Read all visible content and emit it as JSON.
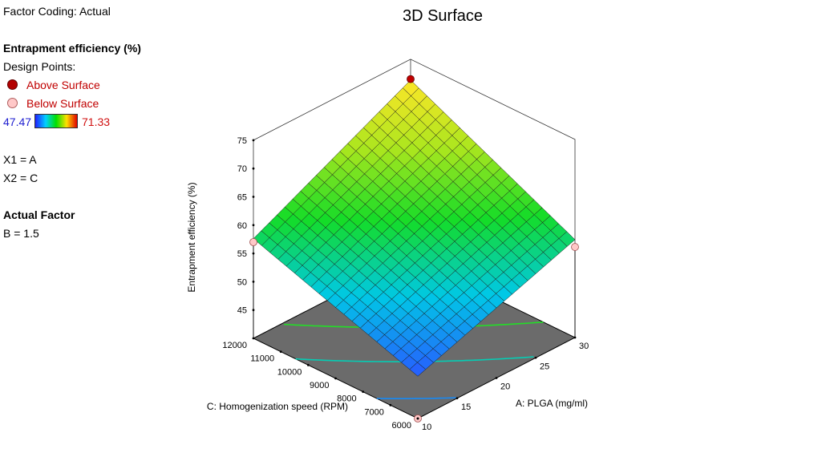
{
  "legend": {
    "factor_coding": "Factor Coding: Actual",
    "response_title": "Entrapment efficiency (%)",
    "design_points_label": "Design Points:",
    "above_label": "Above Surface",
    "below_label": "Below Surface",
    "range_min": "47.47",
    "range_max": "71.33",
    "x1_mapping": "X1 = A",
    "x2_mapping": "X2 = C",
    "actual_factor_title": "Actual Factor",
    "actual_factor_value": "B = 1.5",
    "colors": {
      "above": "#b20000",
      "below": "#ffc8c8",
      "low": "#2020ff",
      "high": "#e00000"
    }
  },
  "chart_data": {
    "type": "surface",
    "title": "3D Surface",
    "xlabel": "A: PLGA (mg/ml)",
    "ylabel": "C: Homogenization speed (RPM)",
    "zlabel": "Entrapment efficiency (%)",
    "xlim": [
      10,
      30
    ],
    "ylim": [
      6000,
      12000
    ],
    "zlim": [
      40,
      75
    ],
    "x_ticks": [
      10,
      15,
      20,
      25,
      30
    ],
    "y_ticks": [
      6000,
      7000,
      8000,
      9000,
      10000,
      11000,
      12000
    ],
    "z_ticks": [
      45,
      50,
      55,
      60,
      65,
      70,
      75
    ],
    "surface_corners": [
      {
        "x": 10,
        "y": 6000,
        "z": 47.47
      },
      {
        "x": 30,
        "y": 6000,
        "z": 57.3
      },
      {
        "x": 10,
        "y": 12000,
        "z": 57.6
      },
      {
        "x": 30,
        "y": 12000,
        "z": 71.33
      }
    ],
    "grid_divisions": 20,
    "design_points": [
      {
        "x": 30,
        "y": 12000,
        "z": 71.5,
        "position": "above"
      },
      {
        "x": 10,
        "y": 12000,
        "z": 57.0,
        "position": "below"
      },
      {
        "x": 30,
        "y": 6000,
        "z": 56.0,
        "position": "below"
      },
      {
        "x": 10,
        "y": 6000,
        "z": 40.0,
        "position": "below"
      }
    ],
    "contour_levels": [
      50,
      55,
      60,
      65,
      70
    ]
  }
}
